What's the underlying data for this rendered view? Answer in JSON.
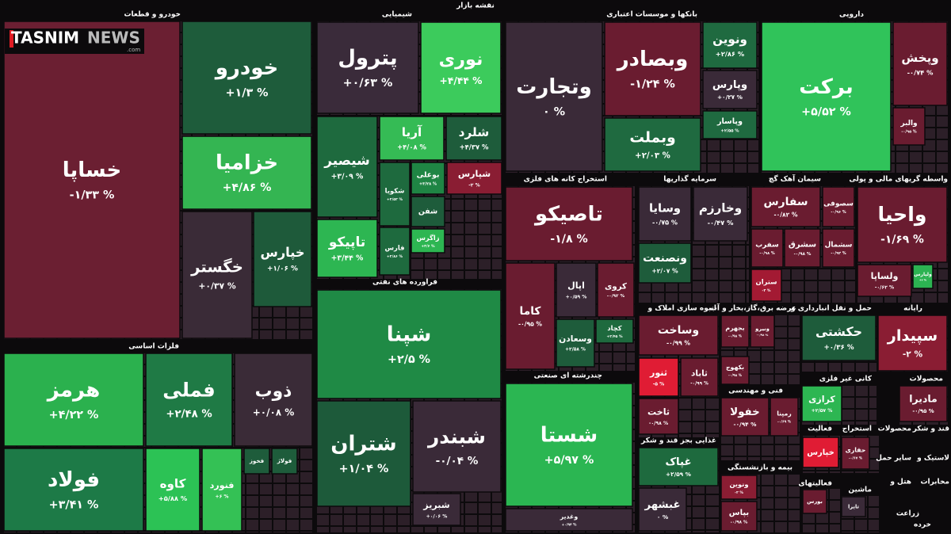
{
  "title": "نقشه بازار",
  "logo": {
    "name": "TASNIM",
    "suffix": "NEWS",
    "domain": ".com"
  },
  "sectors": [
    {
      "name": "خودرو و قطعات",
      "tiles": [
        {
          "symbol": "خساپا",
          "change": "-۱/۳۳ %",
          "color": "#6b1f32"
        },
        {
          "symbol": "خودرو",
          "change": "+۱/۳ %",
          "color": "#1e5c3b"
        },
        {
          "symbol": "خزامیا",
          "change": "+۴/۸۶ %",
          "color": "#34b552"
        },
        {
          "symbol": "خگستر",
          "change": "+۰/۳۷ %",
          "color": "#3a2b37"
        },
        {
          "symbol": "خپارس",
          "change": "+۱/۰۶ %",
          "color": "#1e5a3a"
        }
      ]
    },
    {
      "name": "فلزات اساسی",
      "tiles": [
        {
          "symbol": "هرمز",
          "change": "+۴/۲۲ %",
          "color": "#2bb14e"
        },
        {
          "symbol": "فملی",
          "change": "+۲/۴۸ %",
          "color": "#1f7a45"
        },
        {
          "symbol": "ذوب",
          "change": "+۰/۰۸ %",
          "color": "#3a2b37"
        },
        {
          "symbol": "فولاد",
          "change": "+۳/۴۱ %",
          "color": "#1d7a47"
        },
        {
          "symbol": "کاوه",
          "change": "+۵/۸۸ %",
          "color": "#2cc255"
        },
        {
          "symbol": "فنورد",
          "change": "+۶ %",
          "color": "#34c155"
        },
        {
          "symbol": "فخوز",
          "color": "#1e5c3b"
        },
        {
          "symbol": "فولاژ",
          "color": "#1e5c3b"
        }
      ]
    },
    {
      "name": "شیمیایی",
      "tiles": [
        {
          "symbol": "پترول",
          "change": "+۰/۶۳ %",
          "color": "#3a2b3a"
        },
        {
          "symbol": "نوری",
          "change": "+۴/۴۴ %",
          "color": "#3ccb5c"
        },
        {
          "symbol": "شیصیر",
          "change": "+۳/۰۹ %",
          "color": "#1e6a3e"
        },
        {
          "symbol": "آریا",
          "change": "+۴/۰۸ %",
          "color": "#35bb55"
        },
        {
          "symbol": "شلرد",
          "change": "+۴/۳۷ %",
          "color": "#1e5c3b"
        },
        {
          "symbol": "تاپیکو",
          "change": "+۳/۴۴ %",
          "color": "#2db652"
        },
        {
          "symbol": "شکویا",
          "change": "+۲/۵۲ %",
          "color": "#1e6a3e"
        },
        {
          "symbol": "بوعلی",
          "change": "+۳/۲۸ %",
          "color": "#1f8544"
        },
        {
          "symbol": "شپارس",
          "change": "-۲ %",
          "color": "#8a1d33"
        },
        {
          "symbol": "شفن",
          "color": "#1e5c3b"
        },
        {
          "symbol": "فارس",
          "change": "+۲/۸۶ %",
          "color": "#1e6a3e"
        },
        {
          "symbol": "زاگرس",
          "change": "+۳/۶ %",
          "color": "#2db652"
        }
      ]
    },
    {
      "name": "فراورده های نفتی",
      "tiles": [
        {
          "symbol": "شپنا",
          "change": "+۲/۵ %",
          "color": "#1f8a45"
        },
        {
          "symbol": "شتران",
          "change": "+۱/۰۴ %",
          "color": "#1d5a3a"
        },
        {
          "symbol": "شبندر",
          "change": "-۰/۰۴ %",
          "color": "#3a2a38"
        },
        {
          "symbol": "شبریز",
          "change": "+۰/۰۶ %",
          "color": "#3a2a38"
        }
      ]
    },
    {
      "name": "بانکها و موسسات اعتباری",
      "tiles": [
        {
          "symbol": "وتجارت",
          "change": "۰ %",
          "color": "#3a2a38"
        },
        {
          "symbol": "وبصادر",
          "change": "-۱/۲۴ %",
          "color": "#6a1c30"
        },
        {
          "symbol": "وبملت",
          "change": "+۲/۰۳ %",
          "color": "#1f6a40"
        },
        {
          "symbol": "ونوین",
          "change": "+۲/۸۶ %",
          "color": "#1f6a40"
        },
        {
          "symbol": "وپارس",
          "change": "+۰/۲۷ %",
          "color": "#3a2a38"
        },
        {
          "symbol": "وپاسار",
          "change": "+۲/۵۵ %",
          "color": "#1f6a40"
        }
      ]
    },
    {
      "name": "دارویی",
      "tiles": [
        {
          "symbol": "برکت",
          "change": "+۵/۵۲ %",
          "color": "#30c35a"
        },
        {
          "symbol": "وپخش",
          "change": "-۰/۷۴ %",
          "color": "#6a1c30"
        },
        {
          "symbol": "والبر",
          "change": "-۰/۹۵ %",
          "color": "#6a1c30"
        }
      ]
    },
    {
      "name": "استخراج کانه های فلزی",
      "tiles": [
        {
          "symbol": "تاصیکو",
          "change": "-۱/۸ %",
          "color": "#6a1c30"
        },
        {
          "symbol": "کاما",
          "change": "-۰/۹۵ %",
          "color": "#6a1c30"
        },
        {
          "symbol": "اپال",
          "change": "+۰/۵۹ %",
          "color": "#3a2a38"
        },
        {
          "symbol": "کروی",
          "change": "-۰/۹۲ %",
          "color": "#6a1c30"
        },
        {
          "symbol": "وسعادن",
          "change": "+۲/۵۸ %",
          "color": "#1e5c3b"
        },
        {
          "symbol": "کچاد",
          "change": "+۲/۴۵ %",
          "color": "#1e6a3e"
        }
      ]
    },
    {
      "name": "چندرشته ای صنعتی",
      "tiles": [
        {
          "symbol": "شستا",
          "change": "+۵/۹۷ %",
          "color": "#2bb652"
        },
        {
          "symbol": "وغدیر",
          "change": "+۰/۹۴ %",
          "color": "#3a2a38"
        }
      ]
    },
    {
      "name": "سرمایه گذاریها",
      "tiles": [
        {
          "symbol": "وسایا",
          "change": "-۰/۷۵ %",
          "color": "#3a2a38"
        },
        {
          "symbol": "وخارزم",
          "change": "-۰/۴۷ %",
          "color": "#3a2a38"
        },
        {
          "symbol": "ونصنعت",
          "change": "+۲/۰۷ %",
          "color": "#1e5c3b"
        }
      ]
    },
    {
      "name": "سیمان آهک گچ",
      "tiles": [
        {
          "symbol": "سفارس",
          "change": "-۰/۸۲ %",
          "color": "#6a1c30"
        },
        {
          "symbol": "سصوفی",
          "change": "-۰/۹۶ %",
          "color": "#6a1c30"
        },
        {
          "symbol": "سفرب",
          "change": "-۰/۹۸ %",
          "color": "#6a1c30"
        },
        {
          "symbol": "سشرق",
          "change": "-۰/۹۸ %",
          "color": "#6a1c30"
        },
        {
          "symbol": "سشمال",
          "change": "-۰/۹۲ %",
          "color": "#6a1c30"
        },
        {
          "symbol": "ستران",
          "change": "-۳ %",
          "color": "#a31a33"
        }
      ]
    },
    {
      "name": "واسطه گریهای مالی و پولی",
      "tiles": [
        {
          "symbol": "واحیا",
          "change": "-۱/۶۹ %",
          "color": "#6a1c30"
        },
        {
          "symbol": "ولساپا",
          "change": "-۰/۶۲ %",
          "color": "#6a1c30"
        },
        {
          "symbol": "ولپارس",
          "change": "+۲ %",
          "color": "#2cb352"
        }
      ]
    },
    {
      "name": "انبوه سازی املاک و",
      "tiles": [
        {
          "symbol": "وساخت",
          "change": "-۰/۹۹ %",
          "color": "#6a1c30"
        },
        {
          "symbol": "ثنور",
          "change": "-۵ %",
          "color": "#e01c34"
        },
        {
          "symbol": "ثاباد",
          "change": "-۰/۹۹ %",
          "color": "#6a1c30"
        },
        {
          "symbol": "ثاخت",
          "change": "-۰/۹۸ %",
          "color": "#6a1c30"
        }
      ]
    },
    {
      "name": "عرضه برق،گاز،بخار و آب",
      "tiles": [
        {
          "symbol": "بجهرم",
          "change": "-۰/۹۸ %",
          "color": "#6a1c30"
        },
        {
          "symbol": "ونیرو",
          "change": "-۰/۹۸ %",
          "color": "#6a1c30"
        },
        {
          "symbol": "بکهوج",
          "change": "-۰/۹۸ %",
          "color": "#6a1c30"
        }
      ]
    },
    {
      "name": "حمل و نقل انبارداری و",
      "tiles": [
        {
          "symbol": "حکشتی",
          "change": "+۰/۳۶ %",
          "color": "#1e5c3b"
        }
      ]
    },
    {
      "name": "رایانه",
      "tiles": [
        {
          "symbol": "سپیدار",
          "change": "-۲ %",
          "color": "#8a1d33"
        }
      ]
    },
    {
      "name": "فنی و مهندسی",
      "tiles": [
        {
          "symbol": "خفولا",
          "change": "-۰/۹۴ %",
          "color": "#6a1c30"
        },
        {
          "symbol": "رمپنا",
          "change": "-۰/۶۹ %",
          "color": "#6a1c30"
        }
      ]
    },
    {
      "name": "غذایی بجز قند و شکر",
      "tiles": [
        {
          "symbol": "غپاک",
          "change": "+۲/۵۹ %",
          "color": "#1e6a3e"
        },
        {
          "symbol": "غبشهر",
          "change": "۰ %",
          "color": "#3a2a38"
        }
      ]
    },
    {
      "name": "کانی غیر فلزی",
      "tiles": [
        {
          "symbol": "کرازی",
          "change": "+۲/۵۷ %",
          "color": "#2db652"
        }
      ]
    },
    {
      "name": "محصولات",
      "tiles": [
        {
          "symbol": "مادیرا",
          "change": "-۰/۹۵ %",
          "color": "#6a1c30"
        }
      ]
    },
    {
      "name": "بیمه و بازنشستگی",
      "tiles": [
        {
          "symbol": "ونوین",
          "change": "-۲ %",
          "color": "#8a1d33"
        },
        {
          "symbol": "بپاس",
          "change": "-۰/۹۸ %",
          "color": "#6a1c30"
        }
      ]
    },
    {
      "name": "فعالیت",
      "tiles": [
        {
          "symbol": "خپارس",
          "color": "#e01c34"
        }
      ]
    },
    {
      "name": "استخراج",
      "tiles": [
        {
          "symbol": "حفاری",
          "change": "-۰/۶۷ %",
          "color": "#6a1c30"
        }
      ]
    },
    {
      "name": "فعالیتهای",
      "tiles": [
        {
          "symbol": "بورس",
          "color": "#6a1c30"
        }
      ]
    },
    {
      "name": "ماشین",
      "tiles": [
        {
          "symbol": "تایرا",
          "color": "#3a2a38"
        }
      ]
    },
    {
      "name": "محصولات"
    },
    {
      "name": "قند و شکر"
    },
    {
      "name": "سایر حمل"
    },
    {
      "name": "لاستیک و"
    },
    {
      "name": "هتل و"
    },
    {
      "name": "مخابرات"
    },
    {
      "name": "زراعت"
    },
    {
      "name": "خرده"
    }
  ]
}
